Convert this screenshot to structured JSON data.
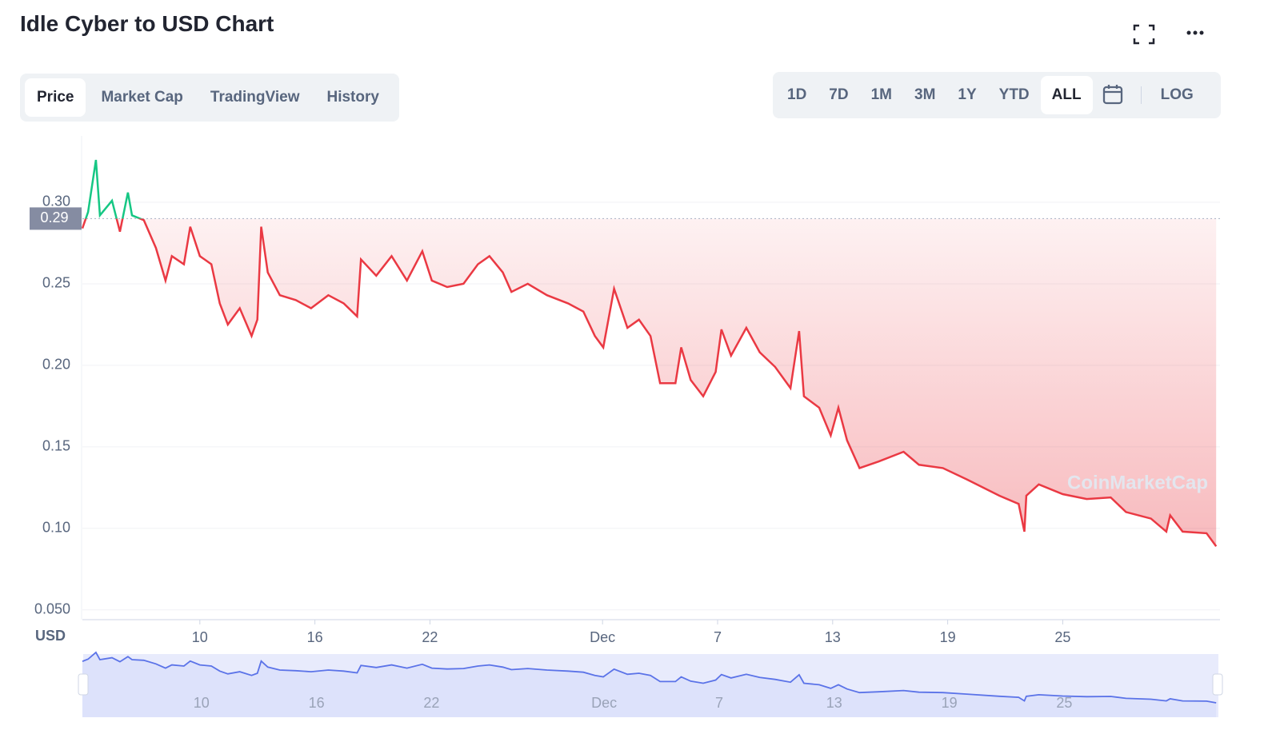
{
  "header": {
    "title": "Idle Cyber to USD Chart"
  },
  "tabs": [
    "Price",
    "Market Cap",
    "TradingView",
    "History"
  ],
  "ranges": [
    "1D",
    "7D",
    "1M",
    "3M",
    "1Y",
    "YTD",
    "ALL"
  ],
  "log_button": "LOG",
  "currency": "USD",
  "watermark": "CoinMarketCap",
  "chart_data": {
    "type": "line",
    "color": "#ea3943",
    "up_color": "#16c784",
    "reference_price": 0.29,
    "x": [
      3.875,
      4.17,
      4.58,
      4.79,
      5.42,
      5.83,
      6.25,
      6.46,
      7.08,
      7.71,
      8.21,
      8.54,
      9.17,
      9.5,
      10,
      10.6,
      11.04,
      11.46,
      12.08,
      12.7,
      13,
      13.2,
      13.54,
      14.17,
      15,
      15.8,
      16.7,
      17.5,
      18.2,
      18.4,
      19.2,
      20,
      20.8,
      21.6,
      22.1,
      22.9,
      23.75,
      24.5,
      25.1,
      25.8,
      26.25,
      27.1,
      28.1,
      29.2,
      30,
      30.6,
      31.04,
      31.6,
      32.3,
      32.9,
      33.5,
      34,
      34.8,
      35.1,
      35.6,
      36.25,
      36.9,
      37.2,
      37.7,
      38.5,
      39.2,
      40,
      40.8,
      41.25,
      41.5,
      42.3,
      42.9,
      43.3,
      43.75,
      44.4,
      45.4,
      46.7,
      47.5,
      48.75,
      50,
      51.7,
      52.7,
      53,
      53.1,
      53.75,
      55,
      56.25,
      57.5,
      58.3,
      59.6,
      60.4,
      60.6,
      61.25,
      62.5,
      63
    ],
    "values": [
      0.284,
      0.294,
      0.326,
      0.292,
      0.301,
      0.282,
      0.306,
      0.292,
      0.289,
      0.272,
      0.252,
      0.267,
      0.262,
      0.285,
      0.267,
      0.262,
      0.238,
      0.225,
      0.235,
      0.218,
      0.228,
      0.285,
      0.257,
      0.243,
      0.24,
      0.235,
      0.243,
      0.238,
      0.23,
      0.265,
      0.255,
      0.267,
      0.252,
      0.27,
      0.252,
      0.248,
      0.25,
      0.262,
      0.267,
      0.257,
      0.245,
      0.25,
      0.243,
      0.238,
      0.233,
      0.218,
      0.211,
      0.247,
      0.223,
      0.228,
      0.218,
      0.189,
      0.189,
      0.211,
      0.191,
      0.181,
      0.196,
      0.222,
      0.206,
      0.223,
      0.208,
      0.199,
      0.186,
      0.221,
      0.181,
      0.174,
      0.157,
      0.174,
      0.154,
      0.137,
      0.141,
      0.147,
      0.139,
      0.137,
      0.13,
      0.12,
      0.115,
      0.098,
      0.12,
      0.127,
      0.121,
      0.118,
      0.119,
      0.11,
      0.106,
      0.098,
      0.108,
      0.098,
      0.097,
      0.089
    ],
    "xlim": [
      3.875,
      63.2
    ],
    "ylim": [
      0.044,
      0.3407
    ],
    "xticks": [
      10,
      16,
      22,
      {
        "value": 31,
        "label": "Dec"
      },
      {
        "value": 37,
        "label": "7"
      },
      {
        "value": 43,
        "label": "13"
      },
      {
        "value": 49,
        "label": "19"
      },
      {
        "value": 55,
        "label": "25"
      }
    ],
    "yticks": [
      {
        "value": 0.05,
        "label": "0.050"
      },
      {
        "value": 0.1,
        "label": "0.10"
      },
      0.15,
      {
        "value": 0.2,
        "label": "0.20"
      },
      0.25,
      {
        "value": 0.3,
        "label": "0.30"
      }
    ],
    "grid": true
  }
}
